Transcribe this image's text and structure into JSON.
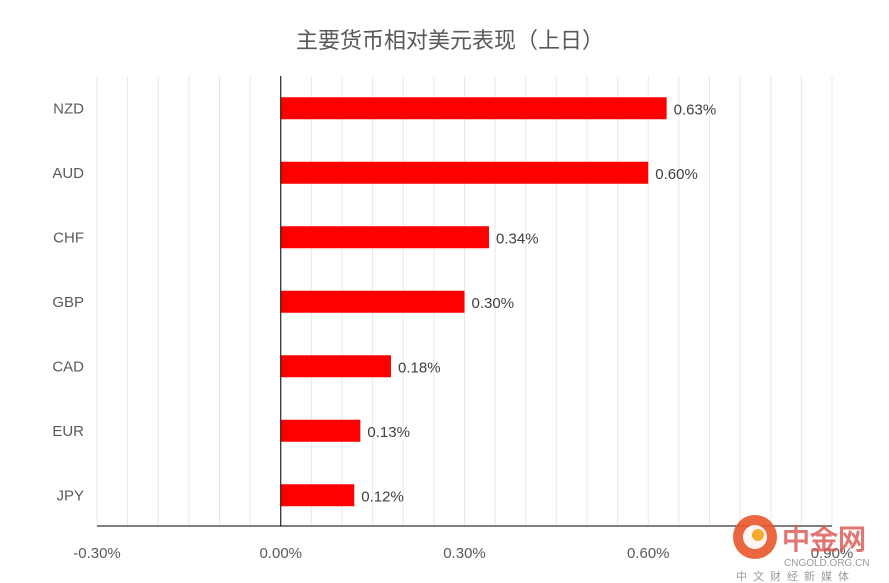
{
  "chart_data": {
    "type": "bar",
    "orientation": "horizontal",
    "title": "主要货币相对美元表现（上日）",
    "categories": [
      "NZD",
      "AUD",
      "CHF",
      "GBP",
      "CAD",
      "EUR",
      "JPY"
    ],
    "values": [
      0.63,
      0.6,
      0.34,
      0.3,
      0.18,
      0.13,
      0.12
    ],
    "value_labels": [
      "0.63%",
      "0.60%",
      "0.34%",
      "0.30%",
      "0.18%",
      "0.13%",
      "0.12%"
    ],
    "xlim": [
      -0.3,
      0.9
    ],
    "xticks": [
      -0.3,
      0.0,
      0.3,
      0.6,
      0.9
    ],
    "xtick_labels": [
      "-0.30%",
      "0.00%",
      "0.30%",
      "0.60%",
      "0.90%"
    ],
    "bar_color": "#ff0000",
    "grid": true,
    "legend": false
  },
  "watermark": {
    "logo": "中金网",
    "site": "CNGOLD.ORG.CN",
    "tagline": "中文财经新媒体"
  }
}
